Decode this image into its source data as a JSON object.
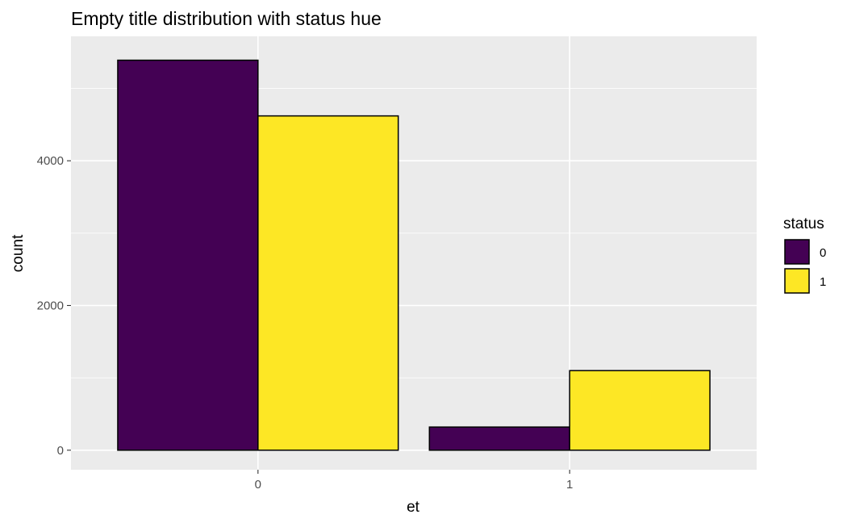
{
  "chart_data": {
    "type": "bar",
    "title": "Empty title distribution with status hue",
    "xlabel": "et",
    "ylabel": "count",
    "categories": [
      "0",
      "1"
    ],
    "ylim": [
      -270,
      5720
    ],
    "yticks": [
      0,
      2000,
      4000
    ],
    "grid": true,
    "legend": {
      "title": "status",
      "position": "right"
    },
    "series": [
      {
        "name": "0",
        "color": "#440154",
        "values": [
          5390,
          320
        ]
      },
      {
        "name": "1",
        "color": "#FDE725",
        "values": [
          4620,
          1100
        ]
      }
    ]
  }
}
